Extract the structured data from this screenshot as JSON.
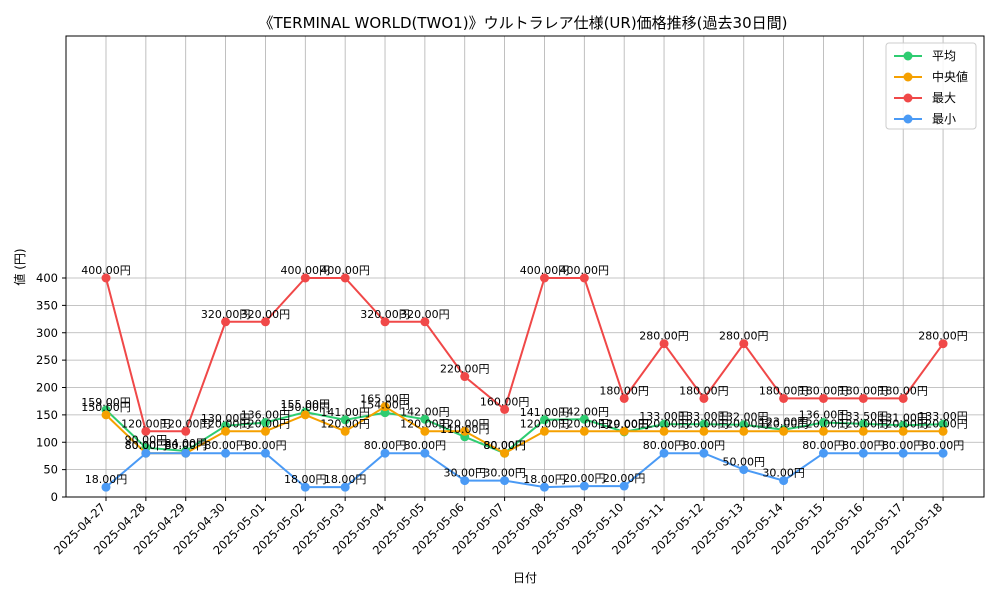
{
  "chart_data": {
    "type": "line",
    "title": "《TERMINAL WORLD(TWO1)》ウルトラレア仕様(UR)価格推移(過去30日間)",
    "xlabel": "日付",
    "ylabel": "値 (円)",
    "ylim": [
      0,
      420
    ],
    "y_ticks": [
      0,
      50,
      100,
      150,
      200,
      250,
      300,
      350,
      400
    ],
    "grid": true,
    "legend_position": "top-right",
    "value_suffix": "円",
    "categories": [
      "2025-04-27",
      "2025-04-28",
      "2025-04-29",
      "2025-04-30",
      "2025-05-01",
      "2025-05-02",
      "2025-05-03",
      "2025-05-04",
      "2025-05-05",
      "2025-05-06",
      "2025-05-07",
      "2025-05-08",
      "2025-05-09",
      "2025-05-10",
      "2025-05-11",
      "2025-05-12",
      "2025-05-13",
      "2025-05-14",
      "2025-05-15",
      "2025-05-16",
      "2025-05-17",
      "2025-05-18"
    ],
    "series": [
      {
        "name": "平均",
        "color": "#2ecc71",
        "values": [
          159,
          90,
          84,
          130,
          136,
          155,
          141,
          154,
          142,
          110,
          80,
          141,
          142,
          119,
          133,
          133,
          132,
          123,
          136,
          133.5,
          131,
          133
        ]
      },
      {
        "name": "中央値",
        "color": "#f5a000",
        "values": [
          150,
          80,
          80,
          120,
          120,
          150,
          120,
          165,
          120,
          120,
          80,
          120,
          120,
          120,
          120,
          120,
          120,
          120,
          120,
          120,
          120,
          120
        ]
      },
      {
        "name": "最大",
        "color": "#f04848",
        "values": [
          400,
          120,
          120,
          320,
          320,
          400,
          400,
          320,
          320,
          220,
          160,
          400,
          400,
          180,
          280,
          180,
          280,
          180,
          180,
          180,
          180,
          280
        ]
      },
      {
        "name": "最小",
        "color": "#4a9af5",
        "values": [
          18,
          80,
          80,
          80,
          80,
          18,
          18,
          80,
          80,
          30,
          30,
          18,
          20,
          20,
          80,
          80,
          50,
          30,
          80,
          80,
          80,
          80
        ]
      }
    ]
  }
}
